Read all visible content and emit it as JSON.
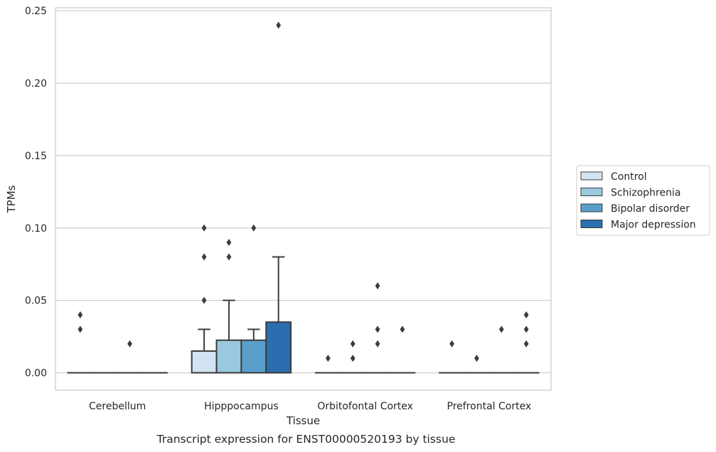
{
  "chart_data": {
    "type": "box",
    "caption": "Transcript expression for ENST00000520193 by tissue",
    "xlabel": "Tissue",
    "ylabel": "TPMs",
    "ylim": [
      -0.012,
      0.252
    ],
    "yticks": [
      0.0,
      0.05,
      0.1,
      0.15,
      0.2,
      0.25
    ],
    "ytick_labels": [
      "0.00",
      "0.05",
      "0.10",
      "0.15",
      "0.20",
      "0.25"
    ],
    "categories": [
      "Cerebellum",
      "Hipppocampus",
      "Orbitofontal Cortex",
      "Prefrontal Cortex"
    ],
    "grid": "horizontal",
    "legend_position": "right",
    "series": [
      {
        "name": "Control",
        "color": "#d2e3f3",
        "boxes": [
          {
            "q1": 0,
            "median": 0,
            "q3": 0,
            "whisker_low": 0,
            "whisker_high": 0,
            "outliers": [
              0.04,
              0.03
            ]
          },
          {
            "q1": 0,
            "median": 0,
            "q3": 0.015,
            "whisker_low": 0,
            "whisker_high": 0.03,
            "outliers": [
              0.05,
              0.08,
              0.1
            ]
          },
          {
            "q1": 0,
            "median": 0,
            "q3": 0,
            "whisker_low": 0,
            "whisker_high": 0,
            "outliers": [
              0.01
            ]
          },
          {
            "q1": 0,
            "median": 0,
            "q3": 0,
            "whisker_low": 0,
            "whisker_high": 0,
            "outliers": [
              0.02
            ]
          }
        ]
      },
      {
        "name": "Schizophrenia",
        "color": "#9ac8e0",
        "boxes": [
          {
            "q1": 0,
            "median": 0,
            "q3": 0,
            "whisker_low": 0,
            "whisker_high": 0,
            "outliers": []
          },
          {
            "q1": 0,
            "median": 0,
            "q3": 0.0225,
            "whisker_low": 0,
            "whisker_high": 0.05,
            "outliers": [
              0.08,
              0.09
            ]
          },
          {
            "q1": 0,
            "median": 0,
            "q3": 0,
            "whisker_low": 0,
            "whisker_high": 0,
            "outliers": [
              0.01,
              0.02
            ]
          },
          {
            "q1": 0,
            "median": 0,
            "q3": 0,
            "whisker_low": 0,
            "whisker_high": 0,
            "outliers": [
              0.01
            ]
          }
        ]
      },
      {
        "name": "Bipolar disorder",
        "color": "#5a9fcb",
        "boxes": [
          {
            "q1": 0,
            "median": 0,
            "q3": 0,
            "whisker_low": 0,
            "whisker_high": 0,
            "outliers": [
              0.02
            ]
          },
          {
            "q1": 0,
            "median": 0,
            "q3": 0.0225,
            "whisker_low": 0,
            "whisker_high": 0.03,
            "outliers": [
              0.1
            ]
          },
          {
            "q1": 0,
            "median": 0,
            "q3": 0,
            "whisker_low": 0,
            "whisker_high": 0,
            "outliers": [
              0.02,
              0.03,
              0.06
            ]
          },
          {
            "q1": 0,
            "median": 0,
            "q3": 0,
            "whisker_low": 0,
            "whisker_high": 0,
            "outliers": [
              0.03
            ]
          }
        ]
      },
      {
        "name": "Major depression",
        "color": "#2a6eb0",
        "boxes": [
          {
            "q1": 0,
            "median": 0,
            "q3": 0,
            "whisker_low": 0,
            "whisker_high": 0,
            "outliers": []
          },
          {
            "q1": 0,
            "median": 0,
            "q3": 0.035,
            "whisker_low": 0,
            "whisker_high": 0.08,
            "outliers": [
              0.24
            ]
          },
          {
            "q1": 0,
            "median": 0,
            "q3": 0,
            "whisker_low": 0,
            "whisker_high": 0,
            "outliers": [
              0.03
            ]
          },
          {
            "q1": 0,
            "median": 0,
            "q3": 0,
            "whisker_low": 0,
            "whisker_high": 0,
            "outliers": [
              0.02,
              0.03,
              0.04
            ]
          }
        ]
      }
    ]
  }
}
